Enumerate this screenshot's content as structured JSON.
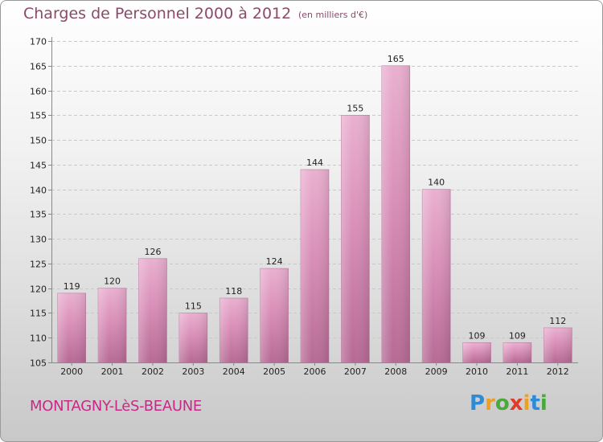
{
  "title": "Charges de Personnel 2000 à 2012",
  "subtitle": "(en milliers d'€)",
  "commune": "MONTAGNY-LèS-BEAUNE",
  "logo": {
    "letters": [
      "P",
      "r",
      "o",
      "x",
      "i",
      "t",
      "i"
    ],
    "colors": [
      "#2e8bd4",
      "#f0a020",
      "#4aa83c",
      "#e33b2a",
      "#f0a020",
      "#2e8bd4",
      "#4aa83c"
    ]
  },
  "colors": {
    "bar": "#d98fb8",
    "bar_light": "#eab0d0",
    "bar_dark": "#b66a94",
    "axis": "#888888",
    "grid": "#c9c9c9",
    "text": "#222222"
  },
  "chart_data": {
    "type": "bar",
    "categories": [
      "2000",
      "2001",
      "2002",
      "2003",
      "2004",
      "2005",
      "2006",
      "2007",
      "2008",
      "2009",
      "2010",
      "2011",
      "2012"
    ],
    "values": [
      119,
      120,
      126,
      115,
      118,
      124,
      144,
      155,
      165,
      140,
      109,
      109,
      112
    ],
    "ylim": [
      105,
      170
    ],
    "yticks": [
      105,
      110,
      115,
      120,
      125,
      130,
      135,
      140,
      145,
      150,
      155,
      160,
      165,
      170
    ],
    "grid": true,
    "title": "Charges de Personnel 2000 à 2012",
    "xlabel": "",
    "ylabel": ""
  }
}
